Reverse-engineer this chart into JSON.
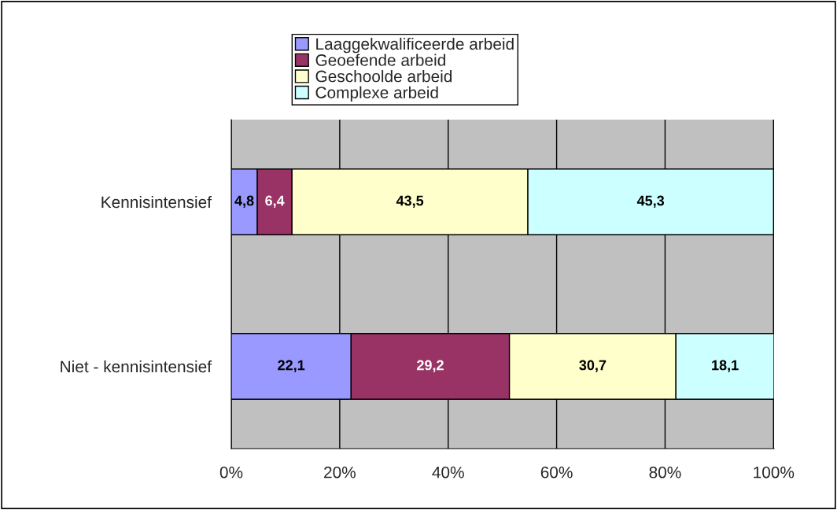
{
  "chart_data": {
    "type": "bar",
    "orientation": "horizontal",
    "stacked": true,
    "categories": [
      "Kennisintensief",
      "Niet - kennisintensief"
    ],
    "series": [
      {
        "name": "Laaggekwalificeerde arbeid",
        "color": "#9999ff",
        "values": [
          4.8,
          22.1
        ],
        "value_labels": [
          "4,8",
          "22,1"
        ]
      },
      {
        "name": "Geoefende arbeid",
        "color": "#993366",
        "values": [
          6.4,
          29.2
        ],
        "value_labels": [
          "6,4",
          "29,2"
        ]
      },
      {
        "name": "Geschoolde arbeid",
        "color": "#ffffcc",
        "values": [
          43.5,
          30.7
        ],
        "value_labels": [
          "43,5",
          "30,7"
        ]
      },
      {
        "name": "Complexe arbeid",
        "color": "#ccffff",
        "values": [
          45.3,
          18.1
        ],
        "value_labels": [
          "45,3",
          "18,1"
        ]
      }
    ],
    "xlim": [
      0,
      100.1
    ],
    "xticks": [
      {
        "value": 0,
        "label": "0%"
      },
      {
        "value": 20,
        "label": "20%"
      },
      {
        "value": 40,
        "label": "40%"
      },
      {
        "value": 60,
        "label": "60%"
      },
      {
        "value": 80,
        "label": "80%"
      },
      {
        "value": 100,
        "label": "100%"
      }
    ],
    "grid": "x",
    "legend": "top"
  }
}
